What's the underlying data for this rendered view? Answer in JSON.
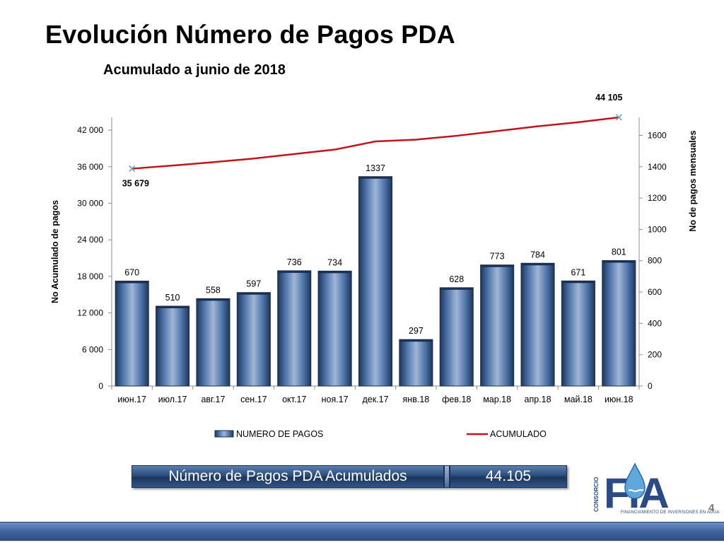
{
  "page": {
    "title": "Evolución Número de Pagos PDA",
    "subtitle": "Acumulado a junio de 2018",
    "page_number": "4"
  },
  "summary": {
    "label": "Número de Pagos PDA Acumulados",
    "value": "44.105"
  },
  "logo": {
    "vertical_text": "CONSORCIO",
    "letters": "FIA",
    "tagline": "FINANCIAMIENTO DE INVERSIONES EN AGUA"
  },
  "chart_data": {
    "type": "bar",
    "categories": [
      "июн.17",
      "июл.17",
      "авг.17",
      "сен.17",
      "окт.17",
      "ноя.17",
      "дек.17",
      "янв.18",
      "фев.18",
      "мар.18",
      "апр.18",
      "май.18",
      "июн.18"
    ],
    "series": [
      {
        "name": "NUMERO DE PAGOS",
        "type": "bar",
        "axis": "right",
        "values": [
          670,
          510,
          558,
          597,
          736,
          734,
          1337,
          297,
          628,
          773,
          784,
          671,
          801
        ],
        "data_labels": [
          "670",
          "510",
          "558",
          "597",
          "736",
          "734",
          "1337",
          "297",
          "628",
          "773",
          "784",
          "671",
          "801"
        ],
        "color": "#3a5f94"
      },
      {
        "name": "ACUMULADO",
        "type": "line",
        "axis": "left",
        "values": [
          35679,
          36189,
          36747,
          37344,
          38080,
          38814,
          40151,
          40448,
          41076,
          41849,
          42633,
          43304,
          44105
        ],
        "first_label": "35 679",
        "last_label": "44 105",
        "color": "#c0161b"
      }
    ],
    "left_axis": {
      "label": "No Acumulado de pagos",
      "ylim": [
        0,
        44100
      ],
      "ticks": [
        0,
        6000,
        12000,
        18000,
        24000,
        30000,
        36000,
        42000
      ],
      "tick_labels": [
        "0",
        "6 000",
        "12 000",
        "18 000",
        "24 000",
        "30 000",
        "36 000",
        "42 000"
      ]
    },
    "right_axis": {
      "label": "No de pagos mensuales",
      "ylim": [
        0,
        1715
      ],
      "ticks": [
        0,
        200,
        400,
        600,
        800,
        1000,
        1200,
        1400,
        1600
      ],
      "tick_labels": [
        "0",
        "200",
        "400",
        "600",
        "800",
        "1000",
        "1200",
        "1400",
        "1600"
      ]
    },
    "legend": {
      "position": "bottom",
      "entries": [
        "NUMERO DE PAGOS",
        "ACUMULADO"
      ]
    },
    "grid": false
  },
  "colors": {
    "bar": "#3a5f94",
    "line": "#c0161b",
    "banner": "#2c4d7c"
  }
}
